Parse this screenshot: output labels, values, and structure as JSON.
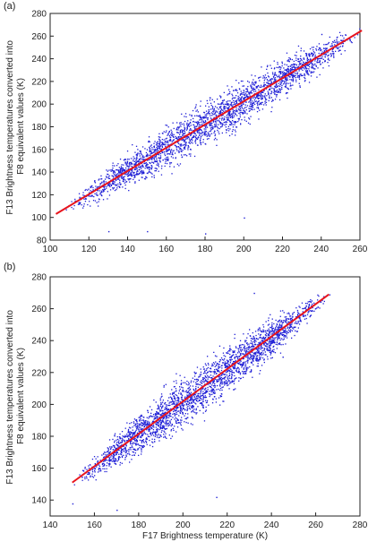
{
  "colors": {
    "points": "#1f1fd6",
    "fit_line": "#e8141c",
    "axes": "#222222",
    "background": "#ffffff"
  },
  "chart_data": [
    {
      "type": "scatter",
      "panel_label": "(a)",
      "xlabel": "",
      "ylabel_lines": [
        "F13 Brightness temperatures converted into",
        "F8 equivalent values (K)"
      ],
      "xlim": [
        100,
        260
      ],
      "ylim": [
        80,
        280
      ],
      "xticks": [
        100,
        120,
        140,
        160,
        180,
        200,
        220,
        240,
        260
      ],
      "yticks": [
        80,
        100,
        120,
        140,
        160,
        180,
        200,
        220,
        240,
        260,
        280
      ],
      "grid": false,
      "series": [
        {
          "kind": "points",
          "x_range": [
            105,
            262
          ],
          "spread_y": 18,
          "outliers": [
            [
              130,
              88
            ],
            [
              180,
              86
            ],
            [
              200,
              100
            ],
            [
              240,
              262
            ],
            [
              150,
              88
            ]
          ]
        },
        {
          "kind": "fit_line",
          "x": [
            103,
            261
          ],
          "y": [
            103,
            265
          ]
        }
      ]
    },
    {
      "type": "scatter",
      "panel_label": "(b)",
      "xlabel": "F17 Brightness temperature (K)",
      "ylabel_lines": [
        "F13 Brightness temperatures converted into",
        "F8 equivalent values (K)"
      ],
      "xlim": [
        140,
        280
      ],
      "ylim": [
        130,
        280
      ],
      "xticks": [
        140,
        160,
        180,
        200,
        220,
        240,
        260,
        280
      ],
      "yticks": [
        140,
        160,
        180,
        200,
        220,
        240,
        260,
        280
      ],
      "grid": false,
      "series": [
        {
          "kind": "points",
          "x_range": [
            150,
            267
          ],
          "spread_y": 14,
          "outliers": [
            [
              170,
              134
            ],
            [
              150,
              138
            ],
            [
              215,
              142
            ],
            [
              232,
              270
            ],
            [
              245,
              230
            ]
          ]
        },
        {
          "kind": "fit_line",
          "x": [
            150,
            266
          ],
          "y": [
            151,
            269
          ]
        }
      ]
    }
  ]
}
